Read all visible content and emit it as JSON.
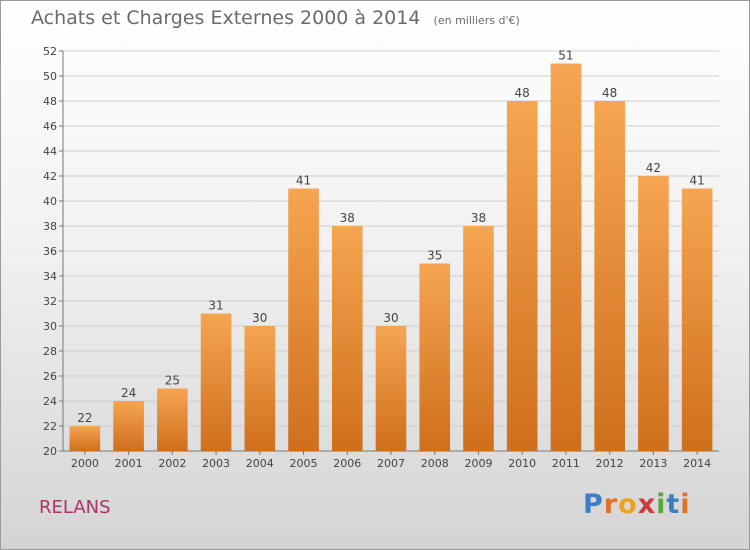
{
  "header": {
    "title": "Achats et Charges Externes 2000 à 2014",
    "unit": "(en milliers d'€)"
  },
  "footer": {
    "place": "RELANS",
    "logo_text": "Proxiti"
  },
  "colors": {
    "bar_top": "#f6a552",
    "bar_bottom": "#cf6f1c",
    "place_text": "#b0306a",
    "text": "#444444"
  },
  "chart_data": {
    "type": "bar",
    "title": "Achats et Charges Externes 2000 à 2014",
    "subtitle": "(en milliers d'€)",
    "categories": [
      "2000",
      "2001",
      "2002",
      "2003",
      "2004",
      "2005",
      "2006",
      "2007",
      "2008",
      "2009",
      "2010",
      "2011",
      "2012",
      "2013",
      "2014"
    ],
    "values": [
      22,
      24,
      25,
      31,
      30,
      41,
      38,
      30,
      35,
      38,
      48,
      51,
      48,
      42,
      41
    ],
    "ylim": [
      20,
      52
    ],
    "yticks": [
      20,
      22,
      24,
      26,
      28,
      30,
      32,
      34,
      36,
      38,
      40,
      42,
      44,
      46,
      48,
      50,
      52
    ],
    "grid": true,
    "legend": "none"
  }
}
